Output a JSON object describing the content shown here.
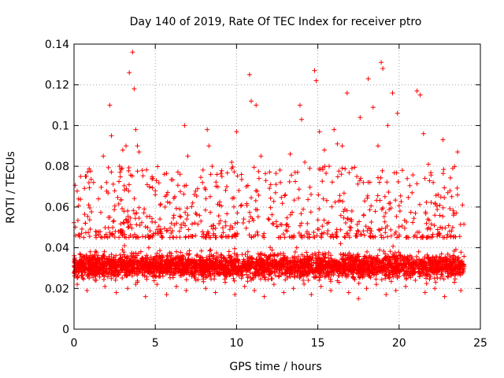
{
  "chart_data": {
    "type": "scatter",
    "title": "Day 140 of 2019, Rate Of TEC Index for receiver ptro",
    "xlabel": "GPS time / hours",
    "ylabel": "ROTI / TECUs",
    "xlim": [
      0,
      25
    ],
    "ylim": [
      0,
      0.14
    ],
    "xticks": [
      0,
      5,
      10,
      15,
      20,
      25
    ],
    "xtick_labels": [
      "0",
      "5",
      "10",
      "15",
      "20",
      "25"
    ],
    "yticks": [
      0,
      0.02,
      0.04,
      0.06,
      0.08,
      0.1,
      0.12,
      0.14
    ],
    "ytick_labels": [
      "0",
      "0.02",
      "0.04",
      "0.06",
      "0.08",
      "0.1",
      "0.12",
      "0.14"
    ],
    "grid": true,
    "marker": "+",
    "color": "#ff0000",
    "series": [
      {
        "name": "ROTI",
        "x": [
          0.1,
          0.4,
          0.7,
          0.9,
          1.2,
          1.5,
          1.8,
          2.0,
          2.2,
          2.3,
          2.5,
          2.8,
          3.0,
          3.2,
          3.4,
          3.6,
          3.7,
          3.8,
          3.9,
          4.0,
          4.2,
          4.5,
          4.8,
          5.0,
          5.3,
          5.6,
          5.9,
          6.2,
          6.5,
          6.8,
          7.0,
          7.3,
          7.6,
          7.9,
          8.2,
          8.3,
          8.5,
          8.8,
          9.1,
          9.4,
          9.7,
          10.0,
          10.3,
          10.6,
          10.8,
          10.9,
          11.2,
          11.5,
          11.8,
          12.1,
          12.4,
          12.7,
          13.0,
          13.3,
          13.6,
          13.9,
          14.0,
          14.2,
          14.5,
          14.8,
          14.9,
          15.1,
          15.4,
          15.7,
          16.0,
          16.2,
          16.5,
          16.8,
          17.1,
          17.4,
          17.6,
          17.8,
          18.1,
          18.4,
          18.7,
          18.9,
          19.0,
          19.3,
          19.6,
          19.9,
          20.2,
          20.5,
          20.8,
          21.1,
          21.3,
          21.5,
          21.8,
          22.1,
          22.4,
          22.7,
          23.0,
          23.3,
          23.6,
          23.9,
          0.3,
          1.0,
          1.6,
          2.4,
          3.1,
          3.5,
          4.1,
          4.6,
          5.2,
          5.8,
          6.4,
          7.1,
          7.7,
          8.4,
          9.0,
          9.6,
          10.2,
          10.7,
          11.3,
          11.9,
          12.5,
          13.1,
          13.7,
          14.3,
          14.7,
          15.3,
          15.9,
          16.4,
          17.0,
          17.7,
          18.2,
          18.8,
          19.4,
          20.0,
          20.6,
          21.2,
          21.7,
          22.3,
          22.9,
          23.5,
          0.2,
          0.8,
          1.3,
          1.9,
          2.6,
          3.3,
          3.9,
          4.4,
          5.1,
          5.7,
          6.3,
          6.9,
          7.5,
          8.1,
          8.7,
          9.3,
          9.9,
          10.5,
          11.1,
          11.7,
          12.3,
          12.9,
          13.5,
          14.1,
          14.6,
          15.2,
          15.8,
          16.3,
          16.9,
          17.5,
          18.0,
          18.6,
          19.2,
          19.8,
          20.4,
          21.0,
          21.6,
          22.2,
          22.8,
          23.4,
          23.8
        ],
        "y": [
          0.046,
          0.075,
          0.052,
          0.061,
          0.072,
          0.064,
          0.085,
          0.072,
          0.11,
          0.095,
          0.068,
          0.08,
          0.088,
          0.09,
          0.126,
          0.136,
          0.118,
          0.098,
          0.09,
          0.087,
          0.078,
          0.071,
          0.074,
          0.066,
          0.061,
          0.06,
          0.062,
          0.065,
          0.059,
          0.1,
          0.085,
          0.062,
          0.069,
          0.072,
          0.098,
          0.09,
          0.08,
          0.076,
          0.075,
          0.07,
          0.082,
          0.097,
          0.076,
          0.07,
          0.125,
          0.112,
          0.11,
          0.085,
          0.073,
          0.071,
          0.067,
          0.072,
          0.066,
          0.086,
          0.077,
          0.11,
          0.103,
          0.082,
          0.079,
          0.127,
          0.122,
          0.097,
          0.088,
          0.08,
          0.098,
          0.091,
          0.09,
          0.116,
          0.079,
          0.075,
          0.104,
          0.072,
          0.123,
          0.109,
          0.09,
          0.131,
          0.128,
          0.1,
          0.116,
          0.106,
          0.078,
          0.074,
          0.067,
          0.117,
          0.115,
          0.096,
          0.081,
          0.072,
          0.066,
          0.093,
          0.067,
          0.079,
          0.087,
          0.061,
          0.032,
          0.038,
          0.029,
          0.033,
          0.041,
          0.036,
          0.03,
          0.04,
          0.026,
          0.034,
          0.028,
          0.037,
          0.031,
          0.039,
          0.027,
          0.035,
          0.03,
          0.038,
          0.033,
          0.029,
          0.036,
          0.032,
          0.04,
          0.034,
          0.028,
          0.037,
          0.031,
          0.042,
          0.035,
          0.03,
          0.036,
          0.039,
          0.033,
          0.029,
          0.034,
          0.038,
          0.031,
          0.027,
          0.035,
          0.032,
          0.022,
          0.019,
          0.024,
          0.021,
          0.018,
          0.02,
          0.023,
          0.016,
          0.022,
          0.017,
          0.021,
          0.019,
          0.024,
          0.02,
          0.018,
          0.023,
          0.017,
          0.021,
          0.019,
          0.016,
          0.022,
          0.018,
          0.02,
          0.024,
          0.017,
          0.021,
          0.019,
          0.023,
          0.018,
          0.015,
          0.02,
          0.022,
          0.017,
          0.019,
          0.021,
          0.024,
          0.018,
          0.02,
          0.016,
          0.023,
          0.019
        ]
      }
    ],
    "note": "Dense scatter of several thousand points; representative sample listed, remaining points densely fill the 0.01-0.06 band across 0-24 h."
  }
}
